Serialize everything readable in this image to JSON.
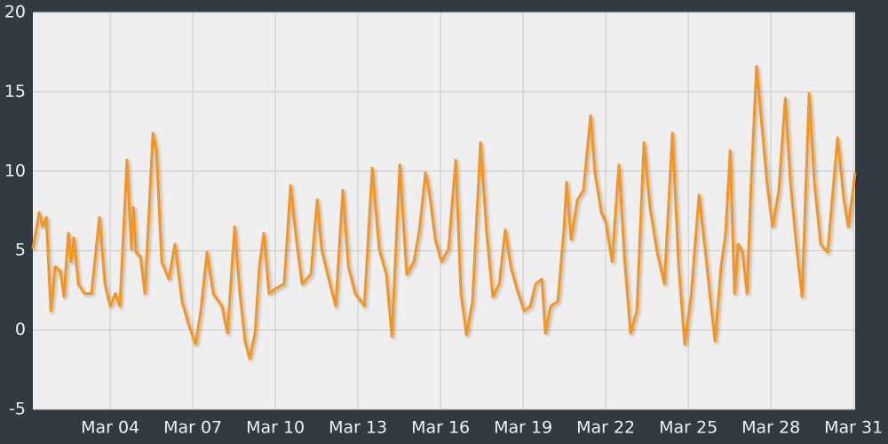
{
  "chart_data": {
    "type": "line",
    "x": [
      1.19,
      1.42,
      1.55,
      1.68,
      1.84,
      2.0,
      2.19,
      2.32,
      2.48,
      2.58,
      2.68,
      2.84,
      3.06,
      3.32,
      3.61,
      3.81,
      4.0,
      4.19,
      4.35,
      4.61,
      4.77,
      4.84,
      4.94,
      5.1,
      5.26,
      5.55,
      5.68,
      5.87,
      6.13,
      6.35,
      6.61,
      6.84,
      7.1,
      7.29,
      7.52,
      7.74,
      8.06,
      8.26,
      8.52,
      8.71,
      8.9,
      9.06,
      9.26,
      9.42,
      9.58,
      9.77,
      10.0,
      10.32,
      10.55,
      10.74,
      10.97,
      11.29,
      11.52,
      11.68,
      11.87,
      12.19,
      12.45,
      12.65,
      12.9,
      13.23,
      13.52,
      13.77,
      14.03,
      14.23,
      14.52,
      14.77,
      15.03,
      15.23,
      15.45,
      15.58,
      15.81,
      16.03,
      16.29,
      16.55,
      16.74,
      16.94,
      17.16,
      17.45,
      17.68,
      17.9,
      18.13,
      18.35,
      18.55,
      18.77,
      19.03,
      19.26,
      19.45,
      19.68,
      19.81,
      20.0,
      20.26,
      20.48,
      20.58,
      20.74,
      20.97,
      21.19,
      21.45,
      21.61,
      21.84,
      22.0,
      22.23,
      22.48,
      22.68,
      22.9,
      23.13,
      23.39,
      23.61,
      23.87,
      24.13,
      24.42,
      24.65,
      24.87,
      25.1,
      25.39,
      25.61,
      25.81,
      25.97,
      26.19,
      26.35,
      26.52,
      26.68,
      26.81,
      26.97,
      27.13,
      27.29,
      27.48,
      27.68,
      27.87,
      28.06,
      28.29,
      28.52,
      28.71,
      28.94,
      29.13,
      29.39,
      29.58,
      29.81,
      30.06,
      30.42,
      30.65,
      30.81,
      30.9,
      31.06
    ],
    "series": [
      {
        "color": "#f7941d",
        "values": [
          5.1,
          7.4,
          6.5,
          7.1,
          1.2,
          4.0,
          3.7,
          2.1,
          6.1,
          4.3,
          5.8,
          2.9,
          2.3,
          2.3,
          7.1,
          2.9,
          1.5,
          2.3,
          1.5,
          10.7,
          5.1,
          7.7,
          4.9,
          4.6,
          2.3,
          12.4,
          11.3,
          4.3,
          3.2,
          5.4,
          1.8,
          0.4,
          -0.9,
          1.2,
          4.9,
          2.3,
          1.5,
          -0.2,
          6.5,
          2.3,
          -0.7,
          -1.8,
          -0.2,
          4.0,
          6.1,
          2.3,
          2.6,
          2.9,
          9.1,
          6.0,
          2.9,
          3.5,
          8.2,
          5.1,
          3.7,
          1.5,
          8.8,
          4.0,
          2.3,
          1.5,
          10.2,
          5.1,
          3.5,
          -0.4,
          10.4,
          3.5,
          4.3,
          6.3,
          9.9,
          8.8,
          5.7,
          4.3,
          5.1,
          10.7,
          2.3,
          -0.3,
          1.8,
          11.8,
          6.0,
          2.1,
          2.9,
          6.3,
          4.0,
          2.6,
          1.2,
          1.5,
          2.9,
          3.2,
          -0.2,
          1.5,
          1.8,
          6.3,
          9.3,
          5.7,
          8.2,
          8.8,
          13.5,
          9.9,
          7.4,
          6.8,
          4.3,
          10.4,
          4.6,
          -0.2,
          1.2,
          11.8,
          7.7,
          4.9,
          2.9,
          12.4,
          4.0,
          -0.9,
          2.1,
          8.5,
          5.1,
          1.8,
          -0.7,
          4.0,
          6.0,
          11.3,
          2.3,
          5.4,
          4.9,
          2.3,
          9.6,
          16.6,
          12.7,
          9.1,
          6.5,
          8.8,
          14.6,
          9.3,
          5.1,
          2.1,
          14.9,
          9.3,
          5.4,
          4.9,
          12.1,
          8.2,
          6.5,
          7.7,
          9.9
        ]
      }
    ],
    "xlim": [
      1.19,
      31.06
    ],
    "xticks": [
      {
        "value": 4,
        "label": "Mar 04"
      },
      {
        "value": 7,
        "label": "Mar 07"
      },
      {
        "value": 10,
        "label": "Mar 10"
      },
      {
        "value": 13,
        "label": "Mar 13"
      },
      {
        "value": 16,
        "label": "Mar 16"
      },
      {
        "value": 19,
        "label": "Mar 19"
      },
      {
        "value": 22,
        "label": "Mar 22"
      },
      {
        "value": 25,
        "label": "Mar 25"
      },
      {
        "value": 28,
        "label": "Mar 28"
      },
      {
        "value": 31,
        "label": "Mar 31"
      }
    ],
    "ylim": [
      -5,
      20
    ],
    "yticks": [
      -5,
      0,
      5,
      10,
      15,
      20
    ],
    "grid": true
  }
}
